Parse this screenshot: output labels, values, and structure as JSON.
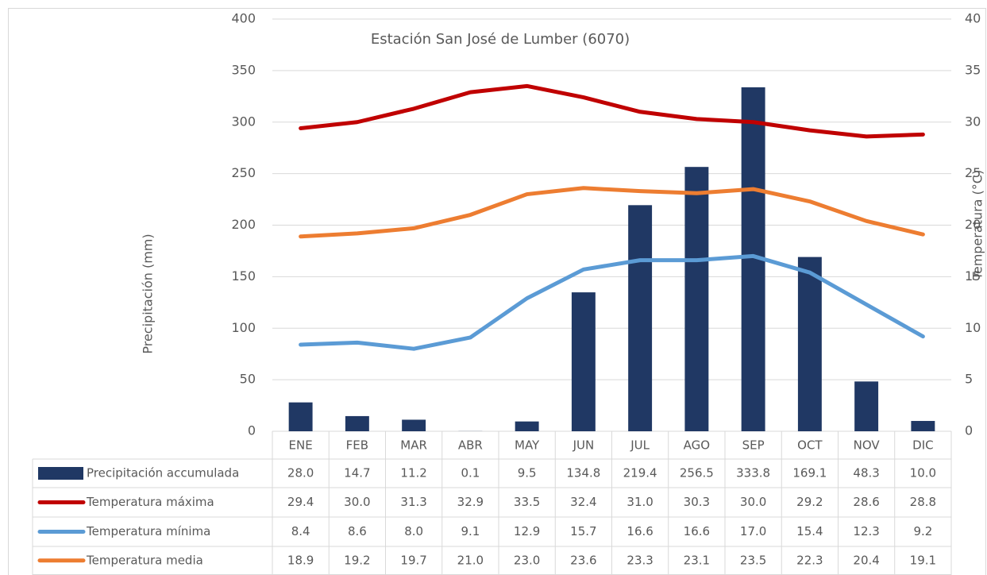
{
  "chart_data": {
    "type": "bar",
    "title": "Estación San José de Lumber (6070)",
    "y_label": "Precipitación (mm)",
    "y2_label": "Temperatura (°C)",
    "categories": [
      "ENE",
      "FEB",
      "MAR",
      "ABR",
      "MAY",
      "JUN",
      "JUL",
      "AGO",
      "SEP",
      "OCT",
      "NOV",
      "DIC"
    ],
    "ylim": [
      0,
      400
    ],
    "yticks": [
      0,
      50,
      100,
      150,
      200,
      250,
      300,
      350,
      400
    ],
    "y2lim": [
      0,
      40
    ],
    "y2ticks": [
      0,
      5,
      10,
      15,
      20,
      25,
      30,
      35,
      40
    ],
    "grid": true,
    "series": [
      {
        "name": "Precipitación accumulada",
        "type": "bar",
        "color": "#203864",
        "values": [
          28.0,
          14.7,
          11.2,
          0.1,
          9.5,
          134.8,
          219.4,
          256.5,
          333.8,
          169.1,
          48.3,
          10.0
        ],
        "value_labels": [
          "28.0",
          "14.7",
          "11.2",
          "0.1",
          "9.5",
          "134.8",
          "219.4",
          "256.5",
          "333.8",
          "169.1",
          "48.3",
          "10.0"
        ]
      },
      {
        "name": "Temperatura máxima",
        "type": "line",
        "axis": "y2",
        "color": "#c00000",
        "values": [
          29.4,
          30.0,
          31.3,
          32.9,
          33.5,
          32.4,
          31.0,
          30.3,
          30.0,
          29.2,
          28.6,
          28.8
        ],
        "value_labels": [
          "29.4",
          "30.0",
          "31.3",
          "32.9",
          "33.5",
          "32.4",
          "31.0",
          "30.3",
          "30.0",
          "29.2",
          "28.6",
          "28.8"
        ]
      },
      {
        "name": "Temperatura mínima",
        "type": "line",
        "axis": "y2",
        "color": "#5b9bd5",
        "values": [
          8.4,
          8.6,
          8.0,
          9.1,
          12.9,
          15.7,
          16.6,
          16.6,
          17.0,
          15.4,
          12.3,
          9.2
        ],
        "value_labels": [
          "8.4",
          "8.6",
          "8.0",
          "9.1",
          "12.9",
          "15.7",
          "16.6",
          "16.6",
          "17.0",
          "15.4",
          "12.3",
          "9.2"
        ]
      },
      {
        "name": "Temperatura media",
        "type": "line",
        "axis": "y2",
        "color": "#ed7d31",
        "values": [
          18.9,
          19.2,
          19.7,
          21.0,
          23.0,
          23.6,
          23.3,
          23.1,
          23.5,
          22.3,
          20.4,
          19.1
        ],
        "value_labels": [
          "18.9",
          "19.2",
          "19.7",
          "21.0",
          "23.0",
          "23.6",
          "23.3",
          "23.1",
          "23.5",
          "22.3",
          "20.4",
          "19.1"
        ]
      }
    ]
  }
}
